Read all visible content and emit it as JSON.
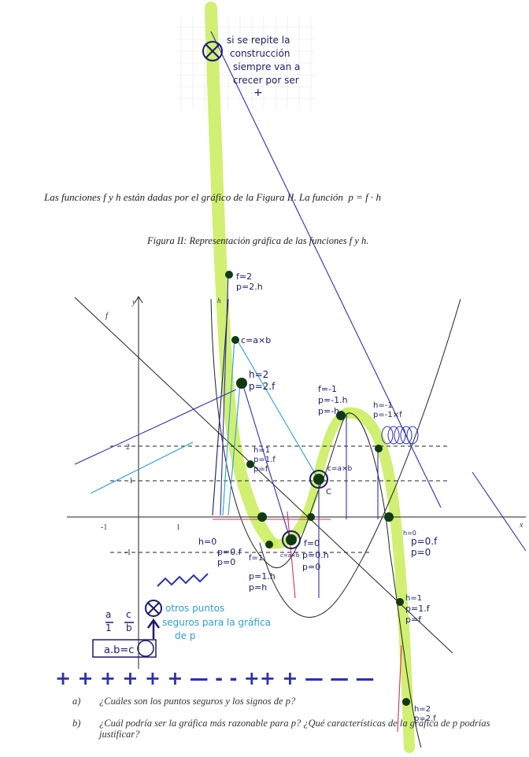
{
  "intro": {
    "text": "Las funciones f y h están dadas por el gráfico de la Figura II. La función",
    "formula": "p = f · h"
  },
  "figure_caption": "Figura II: Representación gráfica de las funciones f y h.",
  "axes": {
    "x_label": "x",
    "y_label": "y",
    "x_ticks": [
      "-1",
      "1"
    ],
    "y_ticks": [
      "2",
      "1",
      "-1"
    ],
    "curve_f": "f",
    "curve_h": "h"
  },
  "handwritten": {
    "top_note": [
      "si se repite la",
      "construcción",
      "siempre van a",
      "crecer por ser",
      "+"
    ],
    "annotations": {
      "f2": [
        "f=2",
        "p=2.h"
      ],
      "c_axb": "c=a×b",
      "h2": [
        "h=2",
        "p=2.f"
      ],
      "f_minus1": [
        "f=-1",
        "p=-1.h",
        "p=-h"
      ],
      "h_minus1": [
        "h=-1",
        "p=-1×f"
      ],
      "h1": [
        "h=1",
        "p=1.f",
        "p=f"
      ],
      "c_axb_2": "c=a×b",
      "c": "C",
      "h0": [
        "h=0",
        "p=0.f",
        "p=0"
      ],
      "f1": [
        "f=1",
        "p=1.h",
        "p=h"
      ],
      "f0": [
        "f=0",
        "p=0.h",
        "p=0"
      ],
      "h0_right": [
        "h=0",
        "p=0.f",
        "p=0"
      ],
      "h1_low": [
        "h=1",
        "p=1.f",
        "p=f"
      ],
      "h2_low": [
        "h=2",
        "p=2.f"
      ],
      "c_abc": "c=a×b",
      "other_points": [
        "otros puntos",
        "seguros para la gráfica",
        "de p"
      ],
      "ratio": [
        "a",
        "1",
        "c",
        "b"
      ],
      "box": "a.b=c",
      "signs": "+ + + + + + — - - ++ + — — —"
    }
  },
  "questions": [
    {
      "label": "a)",
      "text": "¿Cuáles son los puntos seguros y los signos de p?"
    },
    {
      "label": "b)",
      "text": "¿Cuál podría ser la gráfica más razonable para p? ¿Qué características de la gráfica de p podrías justificar?"
    }
  ],
  "colors": {
    "highlight": "#c9ec5a",
    "ink_blue": "#2b2fb8",
    "ink_light_blue": "#2a9ed8",
    "ink_dark": "#1b1b6e",
    "ink_red": "#d8305a",
    "dot": "#0f3a14"
  }
}
